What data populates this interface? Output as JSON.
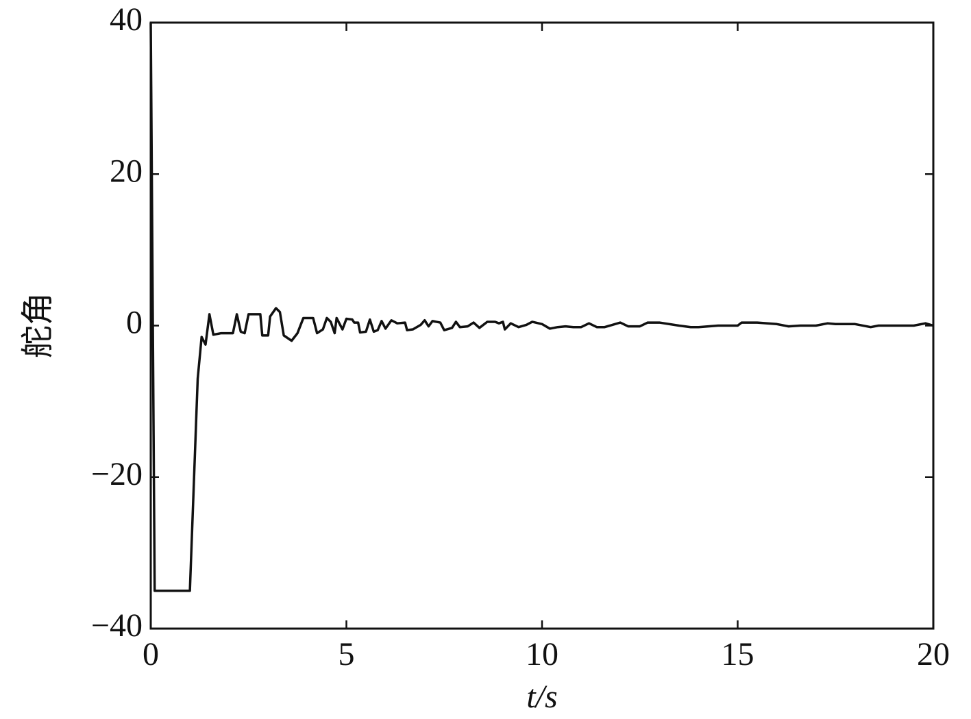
{
  "chart_data": {
    "type": "line",
    "xlabel": "t/s",
    "ylabel": "舵角",
    "xlim": [
      0,
      20
    ],
    "ylim": [
      -40,
      40
    ],
    "xticks": [
      0,
      5,
      10,
      15,
      20
    ],
    "yticks": [
      {
        "value": -40,
        "label": "−40"
      },
      {
        "value": -20,
        "label": "−20"
      },
      0,
      20,
      40
    ],
    "grid": false,
    "x": [
      0,
      0.1,
      1.0,
      1.2,
      1.3,
      1.4,
      1.5,
      1.6,
      1.8,
      2.1,
      2.2,
      2.3,
      2.4,
      2.5,
      2.8,
      2.85,
      3.0,
      3.05,
      3.2,
      3.3,
      3.4,
      3.6,
      3.75,
      3.9,
      4.15,
      4.25,
      4.4,
      4.5,
      4.6,
      4.7,
      4.75,
      4.9,
      5.0,
      5.15,
      5.2,
      5.3,
      5.35,
      5.5,
      5.6,
      5.7,
      5.8,
      5.9,
      6.0,
      6.15,
      6.3,
      6.5,
      6.55,
      6.7,
      6.9,
      7.0,
      7.1,
      7.2,
      7.4,
      7.5,
      7.7,
      7.8,
      7.9,
      8.1,
      8.25,
      8.4,
      8.6,
      8.8,
      8.9,
      9.0,
      9.05,
      9.2,
      9.4,
      9.6,
      9.75,
      10.0,
      10.2,
      10.4,
      10.6,
      10.8,
      11.0,
      11.2,
      11.4,
      11.6,
      12.0,
      12.2,
      12.5,
      12.7,
      13.0,
      13.5,
      13.8,
      14.0,
      14.5,
      15.0,
      15.1,
      15.5,
      16.0,
      16.3,
      16.6,
      17.0,
      17.3,
      17.5,
      18.0,
      18.4,
      18.6,
      19.5,
      19.8,
      20
    ],
    "series": [
      {
        "color": "#111111",
        "values": [
          40,
          -35,
          -35,
          -7,
          -1.5,
          -2.5,
          1.5,
          -1.2,
          -1,
          -1,
          1.5,
          -0.8,
          -1,
          1.5,
          1.5,
          -1.3,
          -1.3,
          1.2,
          2.3,
          1.8,
          -1.3,
          -2,
          -1,
          1,
          1,
          -1,
          -0.5,
          1,
          0.5,
          -1,
          1,
          -0.5,
          0.9,
          0.8,
          0.4,
          0.4,
          -0.9,
          -0.8,
          0.8,
          -0.8,
          -0.6,
          0.6,
          -0.4,
          0.7,
          0.3,
          0.4,
          -0.6,
          -0.5,
          0.1,
          0.7,
          -0.1,
          0.6,
          0.4,
          -0.6,
          -0.3,
          0.5,
          -0.2,
          -0.1,
          0.4,
          -0.3,
          0.5,
          0.5,
          0.3,
          0.5,
          -0.5,
          0.3,
          -0.2,
          0.1,
          0.5,
          0.2,
          -0.4,
          -0.2,
          -0.1,
          -0.2,
          -0.2,
          0.3,
          -0.2,
          -0.2,
          0.4,
          -0.1,
          -0.1,
          0.4,
          0.4,
          0,
          -0.2,
          -0.2,
          0,
          0,
          0.4,
          0.4,
          0.2,
          -0.1,
          0,
          0,
          0.3,
          0.2,
          0.2,
          -0.2,
          0,
          0,
          0.3,
          0
        ]
      }
    ]
  }
}
